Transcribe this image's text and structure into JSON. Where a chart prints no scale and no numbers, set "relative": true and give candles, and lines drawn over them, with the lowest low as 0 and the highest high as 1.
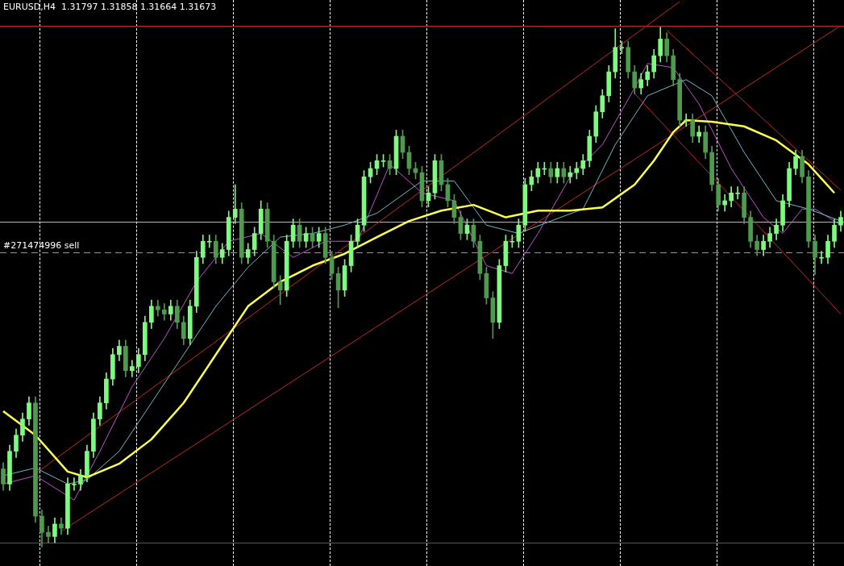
{
  "chart_data": {
    "type": "candlestick",
    "title": "EURUSD,H4  1.31797 1.31858 1.31664 1.31673",
    "relative": true,
    "colors": [
      "#4d9c4d",
      "#7cfc7c",
      "#7cfc7c",
      "#7cfc7c",
      "#7cfc7c",
      "#4d9c4d",
      "#4d9c4d",
      "#4d9c4d",
      "#7cfc7c",
      "#4d9c4d",
      "#7cfc7c",
      "#7cfc7c",
      "#7cfc7c",
      "#7cfc7c",
      "#7cfc7c",
      "#7cfc7c",
      "#7cfc7c",
      "#7cfc7c",
      "#7cfc7c",
      "#4d9c4d",
      "#7cfc7c",
      "#7cfc7c",
      "#7cfc7c",
      "#7cfc7c",
      "#4d9c4d",
      "#4d9c4d",
      "#7cfc7c",
      "#4d9c4d",
      "#4d9c4d",
      "#7cfc7c",
      "#7cfc7c",
      "#7cfc7c",
      "#7cfc7c",
      "#4d9c4d",
      "#7cfc7c",
      "#7cfc7c",
      "#7cfc7c",
      "#4d9c4d",
      "#7cfc7c",
      "#7cfc7c",
      "#7cfc7c",
      "#4d9c4d",
      "#4d9c4d",
      "#4d9c4d",
      "#7cfc7c",
      "#7cfc7c",
      "#4d9c4d",
      "#7cfc7c",
      "#4d9c4d",
      "#7cfc7c",
      "#4d9c4d",
      "#4d9c4d",
      "#4d9c4d",
      "#7cfc7c",
      "#7cfc7c",
      "#7cfc7c",
      "#7cfc7c",
      "#7cfc7c",
      "#7cfc7c",
      "#7cfc7c",
      "#4d9c4d",
      "#7cfc7c",
      "#4d9c4d",
      "#4d9c4d",
      "#4d9c4d",
      "#4d9c4d",
      "#7cfc7c",
      "#7cfc7c",
      "#4d9c4d",
      "#4d9c4d",
      "#4d9c4d",
      "#4d9c4d",
      "#7cfc7c",
      "#4d9c4d",
      "#4d9c4d",
      "#4d9c4d",
      "#4d9c4d",
      "#7cfc7c",
      "#7cfc7c",
      "#7cfc7c",
      "#7cfc7c",
      "#7cfc7c",
      "#7cfc7c",
      "#7cfc7c",
      "#7cfc7c",
      "#4d9c4d",
      "#7cfc7c",
      "#4d9c4d",
      "#7cfc7c",
      "#7cfc7c",
      "#7cfc7c",
      "#7cfc7c",
      "#7cfc7c",
      "#7cfc7c",
      "#7cfc7c",
      "#7cfc7c",
      "#7cfc7c",
      "#4d9c4d",
      "#4d9c4d",
      "#7cfc7c",
      "#7cfc7c",
      "#7cfc7c",
      "#7cfc7c",
      "#4d9c4d",
      "#4d9c4d",
      "#4d9c4d",
      "#7cfc7c",
      "#4d9c4d",
      "#7cfc7c",
      "#4d9c4d",
      "#4d9c4d",
      "#4d9c4d",
      "#7cfc7c",
      "#7cfc7c",
      "#7cfc7c",
      "#4d9c4d",
      "#4d9c4d",
      "#4d9c4d",
      "#7cfc7c",
      "#7cfc7c",
      "#7cfc7c",
      "#7cfc7c",
      "#7cfc7c",
      "#7cfc7c",
      "#4d9c4d",
      "#4d9c4d",
      "#4d9c4d",
      "#7cfc7c",
      "#7cfc7c",
      "#7cfc7c",
      "#7cfc7c"
    ],
    "marker": "none",
    "categories": [
      null,
      null,
      null,
      null,
      null,
      null,
      null,
      null,
      null,
      null,
      null,
      null,
      null,
      null,
      null,
      null,
      null,
      null,
      null,
      null,
      null,
      null,
      null,
      null,
      null,
      null,
      null,
      null,
      null,
      null,
      null,
      null,
      null,
      null,
      null,
      null,
      null,
      null,
      null,
      null,
      null,
      null,
      null,
      null,
      null,
      null,
      null,
      null,
      null,
      null,
      null,
      null,
      null,
      null,
      null,
      null,
      null,
      null,
      null,
      null,
      null,
      null,
      null,
      null,
      null,
      null,
      null,
      null,
      null,
      null,
      null,
      null,
      null,
      null,
      null,
      null,
      null,
      null,
      null,
      null,
      null,
      null,
      null,
      null,
      null,
      null,
      null,
      null,
      null,
      null,
      null,
      null,
      null,
      null,
      null,
      null,
      null,
      null,
      null,
      null,
      null,
      null,
      null,
      null,
      null,
      null,
      null,
      null,
      null,
      null,
      null,
      null,
      null,
      null,
      null,
      null,
      null,
      null,
      null,
      null,
      null,
      null,
      null,
      null,
      null,
      null,
      null,
      null,
      null,
      null,
      null
    ],
    "ohlc": [
      [
        0.15,
        0.162,
        0.109,
        0.121
      ],
      [
        0.121,
        0.196,
        0.109,
        0.184
      ],
      [
        0.184,
        0.227,
        0.172,
        0.215
      ],
      [
        0.215,
        0.258,
        0.203,
        0.246
      ],
      [
        0.246,
        0.289,
        0.234,
        0.277
      ],
      [
        0.277,
        0.289,
        0.047,
        0.059
      ],
      [
        0.059,
        0.071,
        0,
        0.028
      ],
      [
        0.028,
        0.04,
        0.008,
        0.02
      ],
      [
        0.02,
        0.056,
        0.008,
        0.044
      ],
      [
        0.044,
        0.056,
        0.024,
        0.036
      ],
      [
        0.036,
        0.133,
        0.024,
        0.121
      ],
      [
        0.121,
        0.133,
        0.109,
        0.121
      ],
      [
        0.121,
        0.149,
        0.109,
        0.137
      ],
      [
        0.137,
        0.196,
        0.125,
        0.184
      ],
      [
        0.184,
        0.258,
        0.172,
        0.246
      ],
      [
        0.246,
        0.289,
        0.234,
        0.277
      ],
      [
        0.277,
        0.335,
        0.265,
        0.323
      ],
      [
        0.323,
        0.382,
        0.311,
        0.37
      ],
      [
        0.37,
        0.398,
        0.358,
        0.386
      ],
      [
        0.386,
        0.398,
        0.327,
        0.339
      ],
      [
        0.339,
        0.359,
        0.327,
        0.347
      ],
      [
        0.347,
        0.382,
        0.335,
        0.37
      ],
      [
        0.37,
        0.444,
        0.358,
        0.432
      ],
      [
        0.432,
        0.475,
        0.42,
        0.463
      ],
      [
        0.463,
        0.475,
        0.444,
        0.456
      ],
      [
        0.456,
        0.468,
        0.436,
        0.448
      ],
      [
        0.448,
        0.475,
        0.436,
        0.463
      ],
      [
        0.463,
        0.475,
        0.42,
        0.432
      ],
      [
        0.432,
        0.444,
        0.389,
        0.401
      ],
      [
        0.401,
        0.475,
        0.389,
        0.463
      ],
      [
        0.463,
        0.569,
        0.451,
        0.557
      ],
      [
        0.557,
        0.6,
        0.545,
        0.588
      ],
      [
        0.588,
        0.6,
        0.576,
        0.588
      ],
      [
        0.588,
        0.6,
        0.545,
        0.557
      ],
      [
        0.557,
        0.584,
        0.545,
        0.572
      ],
      [
        0.572,
        0.646,
        0.56,
        0.634
      ],
      [
        0.634,
        0.697,
        0.622,
        0.65
      ],
      [
        0.65,
        0.662,
        0.545,
        0.557
      ],
      [
        0.557,
        0.584,
        0.545,
        0.572
      ],
      [
        0.572,
        0.615,
        0.56,
        0.603
      ],
      [
        0.603,
        0.666,
        0.591,
        0.65
      ],
      [
        0.65,
        0.662,
        0.576,
        0.588
      ],
      [
        0.588,
        0.6,
        0.498,
        0.51
      ],
      [
        0.51,
        0.522,
        0.466,
        0.494
      ],
      [
        0.494,
        0.6,
        0.482,
        0.588
      ],
      [
        0.588,
        0.631,
        0.576,
        0.619
      ],
      [
        0.619,
        0.631,
        0.576,
        0.588
      ],
      [
        0.588,
        0.615,
        0.576,
        0.603
      ],
      [
        0.603,
        0.615,
        0.576,
        0.588
      ],
      [
        0.588,
        0.615,
        0.576,
        0.603
      ],
      [
        0.603,
        0.615,
        0.545,
        0.557
      ],
      [
        0.557,
        0.569,
        0.514,
        0.526
      ],
      [
        0.526,
        0.538,
        0.46,
        0.494
      ],
      [
        0.494,
        0.553,
        0.482,
        0.541
      ],
      [
        0.541,
        0.6,
        0.529,
        0.588
      ],
      [
        0.588,
        0.631,
        0.576,
        0.619
      ],
      [
        0.619,
        0.724,
        0.607,
        0.712
      ],
      [
        0.712,
        0.74,
        0.7,
        0.728
      ],
      [
        0.728,
        0.755,
        0.716,
        0.743
      ],
      [
        0.743,
        0.755,
        0.731,
        0.743
      ],
      [
        0.743,
        0.755,
        0.716,
        0.728
      ],
      [
        0.728,
        0.802,
        0.716,
        0.79
      ],
      [
        0.79,
        0.802,
        0.747,
        0.759
      ],
      [
        0.759,
        0.771,
        0.716,
        0.728
      ],
      [
        0.728,
        0.74,
        0.708,
        0.72
      ],
      [
        0.72,
        0.732,
        0.654,
        0.666
      ],
      [
        0.666,
        0.693,
        0.654,
        0.681
      ],
      [
        0.681,
        0.755,
        0.669,
        0.743
      ],
      [
        0.743,
        0.755,
        0.685,
        0.697
      ],
      [
        0.697,
        0.709,
        0.654,
        0.666
      ],
      [
        0.666,
        0.678,
        0.622,
        0.634
      ],
      [
        0.634,
        0.646,
        0.591,
        0.603
      ],
      [
        0.603,
        0.631,
        0.591,
        0.619
      ],
      [
        0.619,
        0.631,
        0.576,
        0.588
      ],
      [
        0.588,
        0.6,
        0.514,
        0.526
      ],
      [
        0.526,
        0.538,
        0.467,
        0.479
      ],
      [
        0.479,
        0.491,
        0.401,
        0.432
      ],
      [
        0.432,
        0.553,
        0.42,
        0.541
      ],
      [
        0.541,
        0.6,
        0.529,
        0.588
      ],
      [
        0.588,
        0.6,
        0.576,
        0.588
      ],
      [
        0.588,
        0.631,
        0.576,
        0.619
      ],
      [
        0.619,
        0.709,
        0.607,
        0.697
      ],
      [
        0.697,
        0.724,
        0.685,
        0.712
      ],
      [
        0.712,
        0.74,
        0.7,
        0.728
      ],
      [
        0.728,
        0.74,
        0.716,
        0.728
      ],
      [
        0.728,
        0.74,
        0.7,
        0.712
      ],
      [
        0.712,
        0.74,
        0.7,
        0.728
      ],
      [
        0.728,
        0.74,
        0.7,
        0.712
      ],
      [
        0.712,
        0.732,
        0.7,
        0.72
      ],
      [
        0.72,
        0.74,
        0.708,
        0.728
      ],
      [
        0.728,
        0.755,
        0.716,
        0.743
      ],
      [
        0.743,
        0.802,
        0.731,
        0.79
      ],
      [
        0.79,
        0.849,
        0.778,
        0.837
      ],
      [
        0.837,
        0.88,
        0.825,
        0.868
      ],
      [
        0.868,
        0.926,
        0.856,
        0.914
      ],
      [
        0.914,
        0.997,
        0.902,
        0.961
      ],
      [
        0.961,
        0.973,
        0.949,
        0.961
      ],
      [
        0.961,
        0.973,
        0.902,
        0.914
      ],
      [
        0.914,
        0.926,
        0.871,
        0.883
      ],
      [
        0.883,
        0.911,
        0.871,
        0.899
      ],
      [
        0.899,
        0.926,
        0.887,
        0.914
      ],
      [
        0.914,
        0.957,
        0.902,
        0.945
      ],
      [
        0.945,
        1,
        0.933,
        0.977
      ],
      [
        0.977,
        0.989,
        0.933,
        0.945
      ],
      [
        0.945,
        0.957,
        0.887,
        0.899
      ],
      [
        0.899,
        0.911,
        0.809,
        0.821
      ],
      [
        0.821,
        0.833,
        0.809,
        0.821
      ],
      [
        0.821,
        0.833,
        0.778,
        0.79
      ],
      [
        0.79,
        0.81,
        0.778,
        0.798
      ],
      [
        0.798,
        0.81,
        0.747,
        0.759
      ],
      [
        0.759,
        0.771,
        0.685,
        0.697
      ],
      [
        0.697,
        0.709,
        0.646,
        0.658
      ],
      [
        0.658,
        0.678,
        0.646,
        0.666
      ],
      [
        0.666,
        0.693,
        0.654,
        0.681
      ],
      [
        0.681,
        0.693,
        0.669,
        0.681
      ],
      [
        0.681,
        0.693,
        0.622,
        0.634
      ],
      [
        0.634,
        0.646,
        0.576,
        0.588
      ],
      [
        0.588,
        0.6,
        0.56,
        0.572
      ],
      [
        0.572,
        0.6,
        0.56,
        0.588
      ],
      [
        0.588,
        0.615,
        0.576,
        0.603
      ],
      [
        0.603,
        0.631,
        0.591,
        0.619
      ],
      [
        0.619,
        0.678,
        0.607,
        0.666
      ],
      [
        0.666,
        0.74,
        0.654,
        0.728
      ],
      [
        0.728,
        0.763,
        0.716,
        0.751
      ],
      [
        0.751,
        0.763,
        0.7,
        0.712
      ],
      [
        0.712,
        0.724,
        0.576,
        0.588
      ],
      [
        0.588,
        0.6,
        0.524,
        0.557
      ],
      [
        0.557,
        0.569,
        0.545,
        0.557
      ],
      [
        0.557,
        0.6,
        0.545,
        0.588
      ],
      [
        0.588,
        0.631,
        0.576,
        0.619
      ],
      [
        0.619,
        0.646,
        0.607,
        0.634
      ]
    ],
    "series": [
      {
        "type": "line",
        "color": "#ffff50",
        "values": [
          0.261,
          null,
          null,
          null,
          null,
          0.215,
          null,
          null,
          null,
          null,
          0.145,
          null,
          null,
          0.134,
          null,
          null,
          null,
          null,
          0.16,
          null,
          null,
          null,
          null,
          0.207,
          null,
          null,
          null,
          null,
          0.277,
          null,
          null,
          null,
          null,
          0.37,
          null,
          null,
          null,
          null,
          0.463,
          null,
          null,
          null,
          null,
          0.51,
          null,
          null,
          null,
          null,
          0.541,
          null,
          null,
          null,
          null,
          0.564,
          null,
          null,
          null,
          null,
          0.596,
          null,
          null,
          null,
          null,
          0.627,
          null,
          null,
          null,
          null,
          0.647,
          null,
          null,
          null,
          null,
          0.658,
          null,
          null,
          null,
          null,
          0.634,
          null,
          null,
          null,
          null,
          0.647,
          null,
          null,
          null,
          null,
          0.647,
          null,
          null,
          null,
          null,
          0.653,
          null,
          null,
          null,
          null,
          0.697,
          null,
          null,
          0.743,
          null,
          null,
          0.798,
          null,
          0.821,
          null,
          null,
          null,
          0.818,
          null,
          null,
          null,
          null,
          0.809,
          null,
          null,
          null,
          null,
          0.782,
          null,
          null,
          null,
          null,
          0.736,
          null,
          null,
          null,
          0.681,
          null
        ]
      },
      {
        "type": "line",
        "color": "#6fb8c8",
        "values": [
          0.137,
          null,
          null,
          null,
          null,
          0.152,
          null,
          null,
          null,
          null,
          0.121,
          null,
          null,
          0.129,
          null,
          null,
          null,
          null,
          0.184,
          null,
          null,
          null,
          null,
          0.277,
          null,
          null,
          null,
          null,
          0.37,
          null,
          null,
          null,
          null,
          0.463,
          null,
          null,
          null,
          null,
          0.538,
          null,
          null,
          null,
          null,
          0.596,
          null,
          null,
          null,
          null,
          0.603,
          null,
          null,
          null,
          null,
          0.619,
          null,
          null,
          null,
          null,
          0.642,
          null,
          null,
          null,
          null,
          null,
          null,
          0.704,
          null,
          null,
          null,
          null,
          0.704,
          null,
          null,
          null,
          null,
          0.619,
          null,
          null,
          null,
          null,
          0.603,
          null,
          null,
          null,
          null,
          0.627,
          null,
          null,
          null,
          null,
          0.65,
          null,
          null,
          null,
          null,
          0.774,
          null,
          null,
          null,
          null,
          0.868,
          null,
          null,
          null,
          null,
          null,
          0.899,
          null,
          null,
          null,
          0.868,
          null,
          null,
          null,
          null,
          0.759,
          null,
          null,
          null,
          null,
          0.666,
          null,
          null,
          null,
          null,
          0.65,
          null,
          null,
          null,
          null,
          0.627
        ]
      },
      {
        "type": "line",
        "color": "#c050d0",
        "values": [
          0.121,
          null,
          null,
          null,
          null,
          0.137,
          null,
          null,
          null,
          0.106,
          null,
          0.09,
          null,
          null,
          null,
          0.184,
          null,
          null,
          null,
          null,
          0.308,
          null,
          null,
          null,
          null,
          0.401,
          null,
          null,
          null,
          null,
          0.51,
          null,
          null,
          null,
          null,
          0.588,
          null,
          null,
          null,
          null,
          0.603,
          null,
          null,
          null,
          null,
          0.557,
          null,
          null,
          null,
          null,
          0.588,
          null,
          null,
          null,
          null,
          0.588,
          null,
          null,
          null,
          null,
          0.736,
          null,
          null,
          null,
          null,
          0.681,
          null,
          null,
          null,
          null,
          0.666,
          null,
          null,
          null,
          null,
          0.541,
          null,
          null,
          null,
          0.526,
          null,
          null,
          null,
          0.603,
          null,
          null,
          null,
          null,
          0.712,
          null,
          null,
          null,
          null,
          0.774,
          null,
          null,
          null,
          null,
          0.883,
          null,
          0.93,
          null,
          null,
          null,
          0.922,
          null,
          null,
          null,
          0.852,
          null,
          null,
          null,
          null,
          0.728,
          null,
          null,
          null,
          null,
          0.634,
          null,
          null,
          0.603,
          null,
          null,
          0.65,
          null,
          0.65,
          null,
          null,
          null,
          0.619
        ]
      },
      {
        "type": "line",
        "color": "#c02828",
        "values": [
          null,
          null,
          null,
          null,
          null,
          null,
          null,
          null,
          null,
          0.03,
          null,
          null,
          null,
          null,
          null,
          null,
          null,
          null,
          null,
          null,
          null,
          null,
          null,
          null,
          null,
          null,
          null,
          null,
          null,
          null,
          null,
          null,
          null,
          null,
          null,
          null,
          null,
          null,
          null,
          null,
          null,
          null,
          null,
          null,
          null,
          null,
          null,
          null,
          null,
          null,
          null,
          null,
          null,
          null,
          null,
          null,
          null,
          null,
          null,
          null,
          null,
          null,
          null,
          null,
          null,
          null,
          null,
          null,
          null,
          null,
          null,
          null,
          null,
          null,
          null,
          null,
          null,
          null,
          null,
          null,
          null,
          null,
          null,
          null,
          null,
          null,
          null,
          null,
          null,
          null,
          null,
          null,
          null,
          null,
          null,
          null,
          null,
          null,
          null,
          null,
          null,
          null,
          null,
          null,
          null,
          null,
          null,
          null,
          null,
          null,
          null,
          null,
          null,
          null,
          null,
          null,
          null,
          null,
          null,
          null,
          null,
          null,
          null,
          null,
          null,
          null,
          null,
          null,
          null,
          null,
          1.003
        ]
      },
      {
        "type": "line",
        "color": "#c02828",
        "values": [
          null,
          null,
          null,
          null,
          null,
          0.141,
          null,
          null,
          null,
          null,
          null,
          null,
          null,
          null,
          null,
          null,
          null,
          null,
          null,
          null,
          null,
          null,
          null,
          null,
          null,
          null,
          null,
          null,
          null,
          null,
          null,
          null,
          null,
          null,
          null,
          null,
          null,
          null,
          null,
          null,
          null,
          null,
          null,
          null,
          null,
          null,
          null,
          null,
          null,
          null,
          null,
          null,
          null,
          null,
          null,
          null,
          null,
          null,
          null,
          null,
          null,
          null,
          null,
          null,
          null,
          null,
          null,
          null,
          null,
          null,
          null,
          null,
          null,
          null,
          null,
          null,
          null,
          null,
          null,
          null,
          null,
          null,
          null,
          null,
          null,
          null,
          null,
          null,
          null,
          null,
          null,
          null,
          null,
          null,
          null,
          null,
          null,
          null,
          null,
          null,
          null,
          null,
          null,
          null,
          null,
          1.049,
          null,
          null,
          null,
          null,
          null,
          null,
          null,
          null,
          null,
          null,
          null,
          null,
          null,
          null,
          null,
          null,
          null,
          null,
          null,
          null,
          null,
          null,
          null,
          null,
          null
        ]
      },
      {
        "type": "line",
        "color": "#c02828",
        "values": [
          null,
          null,
          null,
          null,
          null,
          null,
          null,
          null,
          null,
          null,
          null,
          null,
          null,
          null,
          null,
          null,
          null,
          null,
          null,
          null,
          null,
          null,
          null,
          null,
          null,
          null,
          null,
          null,
          null,
          null,
          null,
          null,
          null,
          null,
          null,
          null,
          null,
          null,
          null,
          null,
          null,
          null,
          null,
          null,
          null,
          null,
          null,
          null,
          null,
          null,
          null,
          null,
          null,
          null,
          null,
          null,
          null,
          null,
          null,
          null,
          null,
          null,
          null,
          null,
          null,
          null,
          null,
          null,
          null,
          null,
          null,
          null,
          null,
          null,
          null,
          null,
          null,
          null,
          null,
          null,
          null,
          null,
          null,
          null,
          null,
          null,
          null,
          null,
          null,
          null,
          null,
          null,
          null,
          null,
          null,
          null,
          null,
          null,
          null,
          null,
          null,
          null,
          null,
          0.994,
          null,
          null,
          null,
          null,
          null,
          null,
          null,
          null,
          null,
          null,
          null,
          null,
          null,
          null,
          null,
          null,
          null,
          null,
          null,
          null,
          null,
          null,
          null,
          null,
          null,
          null,
          0.686
        ]
      },
      {
        "type": "line",
        "color": "#c02828",
        "values": [
          null,
          null,
          null,
          null,
          null,
          null,
          null,
          null,
          null,
          null,
          null,
          null,
          null,
          null,
          null,
          null,
          null,
          null,
          null,
          null,
          null,
          null,
          null,
          null,
          null,
          null,
          null,
          null,
          null,
          null,
          null,
          null,
          null,
          null,
          null,
          null,
          null,
          null,
          null,
          null,
          null,
          null,
          null,
          null,
          null,
          null,
          null,
          null,
          null,
          null,
          null,
          null,
          null,
          null,
          null,
          null,
          null,
          null,
          null,
          null,
          null,
          null,
          null,
          null,
          null,
          null,
          null,
          null,
          null,
          null,
          null,
          null,
          null,
          null,
          null,
          null,
          null,
          null,
          null,
          null,
          null,
          null,
          null,
          null,
          null,
          null,
          null,
          null,
          null,
          null,
          null,
          null,
          null,
          null,
          null,
          null,
          null,
          null,
          0.872,
          null,
          null,
          null,
          null,
          null,
          null,
          null,
          null,
          null,
          null,
          null,
          null,
          null,
          null,
          null,
          null,
          null,
          null,
          null,
          null,
          null,
          null,
          null,
          null,
          null,
          null,
          null,
          null,
          null,
          null,
          null,
          0.448
        ]
      }
    ],
    "ref_lines": [
      {
        "axis": "y",
        "value": 1.003,
        "color": "#c02828",
        "line_style": "solid"
      },
      {
        "axis": "y",
        "value": 0.009,
        "color": "#c02828",
        "line_style": "solid"
      },
      {
        "axis": "y",
        "value": 0.625,
        "color": "#b8b8b8",
        "line_style": "solid"
      },
      {
        "axis": "y",
        "value": 0.566,
        "color": "#70b070",
        "line_style": "dashed",
        "label": "#271474996 sell"
      }
    ]
  }
}
